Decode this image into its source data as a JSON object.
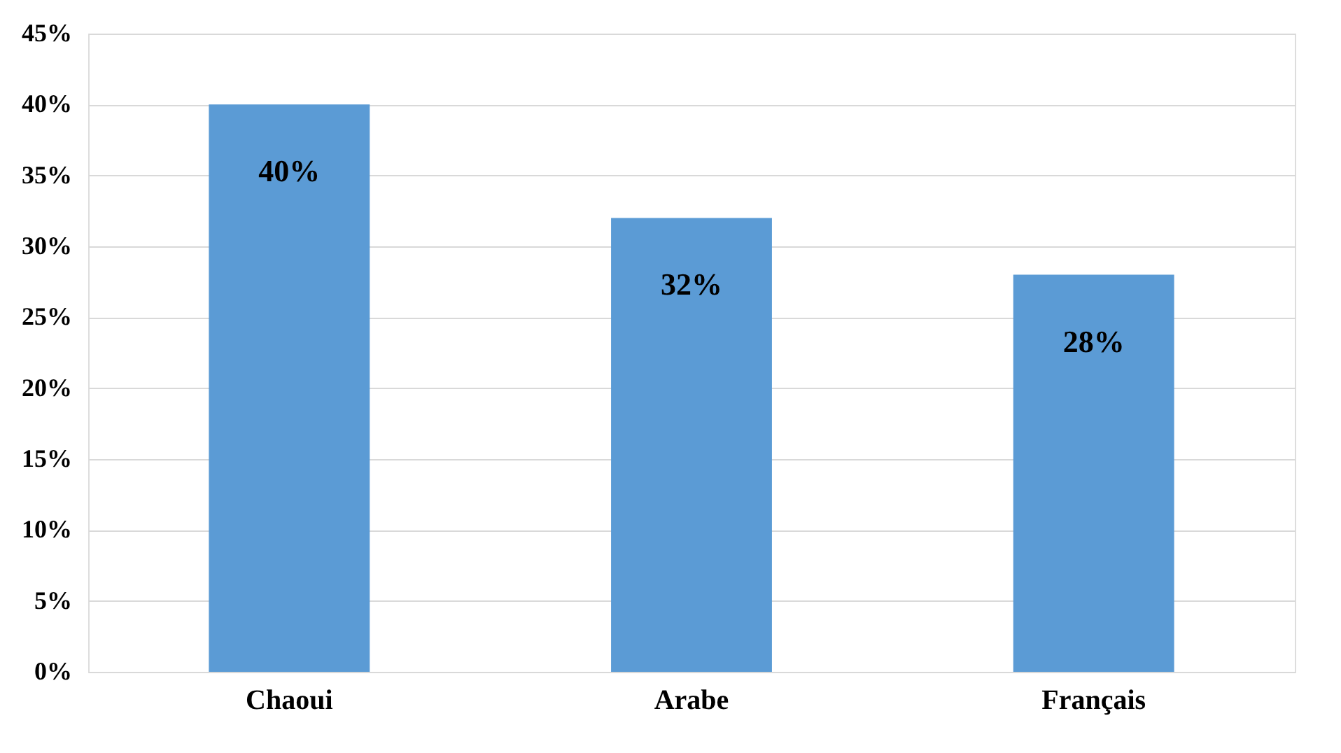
{
  "chart_data": {
    "type": "bar",
    "categories": [
      "Chaoui",
      "Arabe",
      "Français"
    ],
    "values": [
      40,
      32,
      28
    ],
    "color": "#5b9bd5",
    "value_labels": [
      "40%",
      "32%",
      "28%"
    ],
    "ylim": [
      0,
      45
    ],
    "yticks": [
      {
        "value": 0,
        "label": "0%"
      },
      {
        "value": 5,
        "label": "5%"
      },
      {
        "value": 10,
        "label": "10%"
      },
      {
        "value": 15,
        "label": "15%"
      },
      {
        "value": 20,
        "label": "20%"
      },
      {
        "value": 25,
        "label": "25%"
      },
      {
        "value": 30,
        "label": "30%"
      },
      {
        "value": 35,
        "label": "35%"
      },
      {
        "value": 40,
        "label": "40%"
      },
      {
        "value": 45,
        "label": "45%"
      }
    ],
    "grid": "y"
  }
}
